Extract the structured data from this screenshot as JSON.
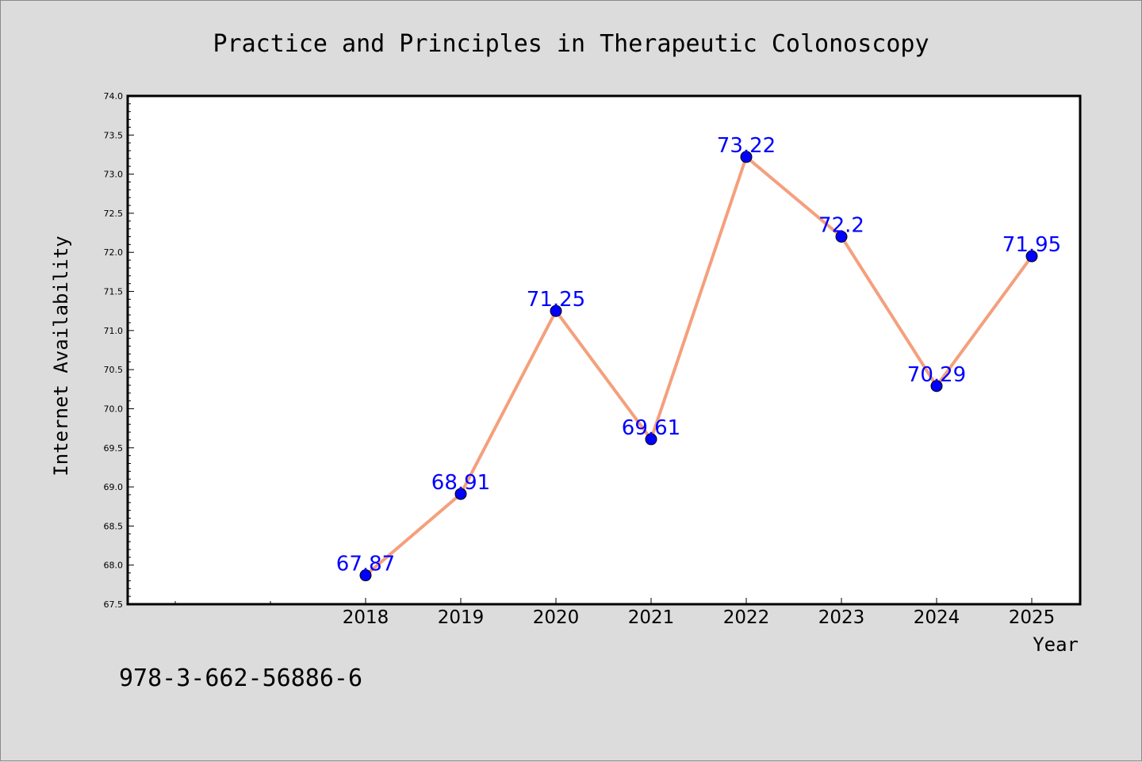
{
  "chart_data": {
    "type": "line",
    "title": "Practice and Principles in Therapeutic Colonoscopy",
    "xlabel": "Year",
    "ylabel": "Internet Availability",
    "categories": [
      "2018",
      "2019",
      "2020",
      "2021",
      "2022",
      "2023",
      "2024",
      "2025"
    ],
    "series": [
      {
        "values": [
          67.87,
          68.91,
          71.25,
          69.61,
          73.22,
          72.2,
          70.29,
          71.95
        ],
        "labels": [
          "67.87",
          "68.91",
          "71.25",
          "69.61",
          "73.22",
          "72.2",
          "70.29",
          "71.95"
        ],
        "line_color": "#f4a07c",
        "marker_color": "#0000ff"
      }
    ],
    "ylim": [
      67.5,
      74.0
    ],
    "yticks": [
      "67.5",
      "68.0",
      "68.5",
      "69.0",
      "69.5",
      "70.0",
      "70.5",
      "71.0",
      "71.5",
      "72.0",
      "72.5",
      "73.0",
      "73.5",
      "74.0"
    ],
    "grid": false,
    "legend": "none"
  },
  "footer": {
    "isbn": "978-3-662-56886-6"
  },
  "colors": {
    "background": "#dcdcdc",
    "plot_background": "#ffffff",
    "label_color": "#0000ff"
  }
}
